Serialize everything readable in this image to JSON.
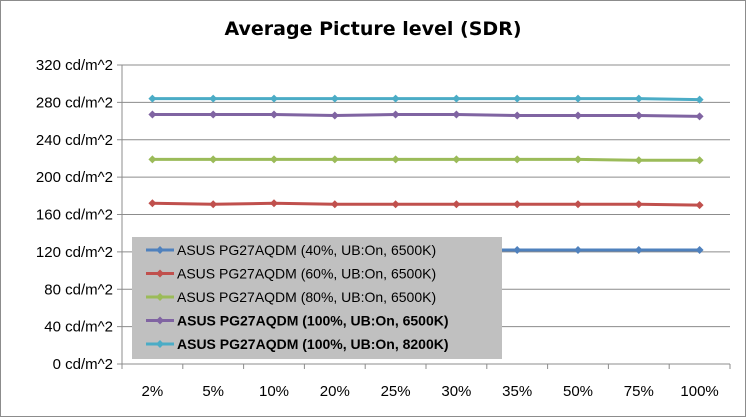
{
  "chart_data": {
    "type": "line",
    "title": "Average Picture level (SDR)",
    "xlabel": "",
    "ylabel": "",
    "categories": [
      "2%",
      "5%",
      "10%",
      "20%",
      "25%",
      "30%",
      "35%",
      "50%",
      "75%",
      "100%"
    ],
    "y_ticks": [
      "0 cd/m^2",
      "40 cd/m^2",
      "80 cd/m^2",
      "120 cd/m^2",
      "160 cd/m^2",
      "200 cd/m^2",
      "240 cd/m^2",
      "280 cd/m^2",
      "320 cd/m^2"
    ],
    "ylim": [
      0,
      320
    ],
    "grid": true,
    "legend_position": "bottom-left",
    "series": [
      {
        "name": "ASUS PG27AQDM (40%, UB:On, 6500K)",
        "color": "#4f81bd",
        "bold": false,
        "values": [
          122,
          122,
          122,
          122,
          122,
          122,
          122,
          122,
          122,
          122
        ]
      },
      {
        "name": "ASUS PG27AQDM (60%, UB:On, 6500K)",
        "color": "#c0504d",
        "bold": false,
        "values": [
          172,
          171,
          172,
          171,
          171,
          171,
          171,
          171,
          171,
          170
        ]
      },
      {
        "name": "ASUS PG27AQDM (80%, UB:On, 6500K)",
        "color": "#9bbb59",
        "bold": false,
        "values": [
          219,
          219,
          219,
          219,
          219,
          219,
          219,
          219,
          218,
          218
        ]
      },
      {
        "name": "ASUS PG27AQDM (100%, UB:On, 6500K)",
        "color": "#8064a2",
        "bold": true,
        "values": [
          267,
          267,
          267,
          266,
          267,
          267,
          266,
          266,
          266,
          265
        ]
      },
      {
        "name": "ASUS PG27AQDM (100%, UB:On, 8200K)",
        "color": "#4bacc6",
        "bold": true,
        "values": [
          284,
          284,
          284,
          284,
          284,
          284,
          284,
          284,
          284,
          283
        ]
      }
    ]
  }
}
